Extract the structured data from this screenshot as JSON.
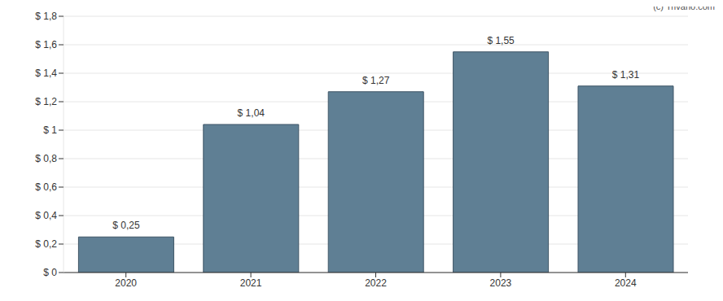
{
  "chart_data": {
    "type": "bar",
    "annotation": "(c) Trivano.com",
    "categories": [
      "2020",
      "2021",
      "2022",
      "2023",
      "2024"
    ],
    "values": [
      0.25,
      1.04,
      1.27,
      1.55,
      1.31
    ],
    "value_labels": [
      "$ 0,25",
      "$ 1,04",
      "$ 1,27",
      "$ 1,55",
      "$ 1,31"
    ],
    "data_labels": true,
    "color": "#5f7f94",
    "ylim": [
      0,
      1.8
    ],
    "yticks": [
      {
        "value": 0,
        "label": "$ 0"
      },
      {
        "value": 0.2,
        "label": "$ 0,2"
      },
      {
        "value": 0.4,
        "label": "$ 0,4"
      },
      {
        "value": 0.6,
        "label": "$ 0,6"
      },
      {
        "value": 0.8,
        "label": "$ 0,8"
      },
      {
        "value": 1,
        "label": "$ 1"
      },
      {
        "value": 1.2,
        "label": "$ 1,2"
      },
      {
        "value": 1.4,
        "label": "$ 1,4"
      },
      {
        "value": 1.6,
        "label": "$ 1,6"
      },
      {
        "value": 1.8,
        "label": "$ 1,8"
      }
    ],
    "grid": true
  }
}
